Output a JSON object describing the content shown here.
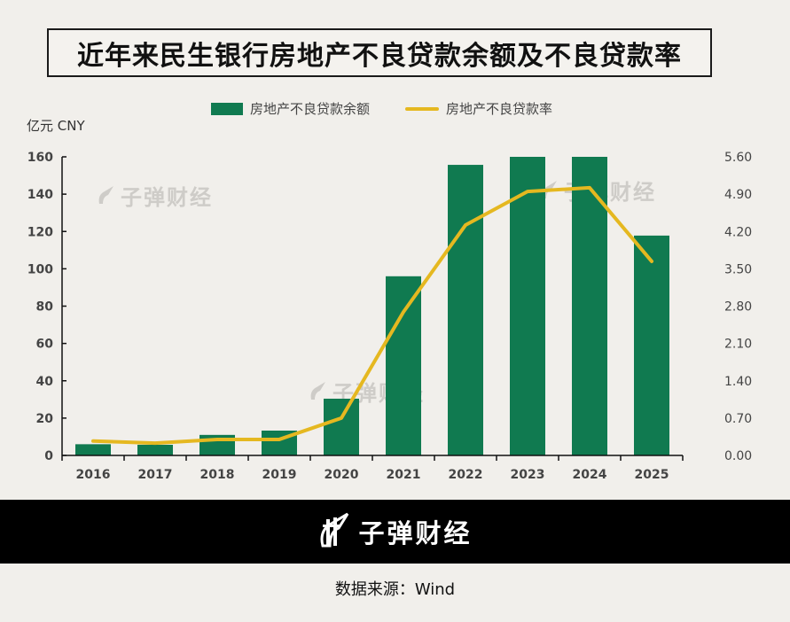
{
  "title": "近年来民生银行房地产不良贷款余额及不良贷款率",
  "legend": {
    "bar_label": "房地产不良贷款余额",
    "line_label": "房地产不良贷款率"
  },
  "left_axis_unit": "亿元 CNY",
  "watermark_text": "子弹财经",
  "brand": {
    "name": "子弹财经"
  },
  "source": "数据来源：Wind",
  "colors": {
    "bar": "#107a50",
    "line": "#e5b820",
    "background": "#f1efeb"
  },
  "chart_data": {
    "type": "bar",
    "title": "近年来民生银行房地产不良贷款余额及不良贷款率",
    "xlabel": "",
    "ylabel": "亿元 CNY",
    "categories": [
      "2016",
      "2017",
      "2018",
      "2019",
      "2020",
      "2021",
      "2022",
      "2023",
      "2024",
      "2025"
    ],
    "series": [
      {
        "name": "房地产不良贷款余额",
        "type": "bar",
        "axis": "left",
        "values": [
          6.0,
          5.7,
          11.0,
          13.3,
          30.4,
          96.0,
          155.7,
          160.0,
          160.0,
          117.8
        ]
      },
      {
        "name": "房地产不良贷款率",
        "type": "line",
        "axis": "right",
        "values": [
          0.27,
          0.23,
          0.3,
          0.3,
          0.7,
          2.69,
          4.32,
          4.95,
          5.02,
          3.64
        ]
      }
    ],
    "ylim": [
      0,
      160
    ],
    "yticks": [
      "0",
      "20",
      "40",
      "60",
      "80",
      "100",
      "120",
      "140",
      "160"
    ],
    "y2lim": [
      0,
      5.6
    ],
    "y2ticks": [
      "0.00",
      "0.70",
      "1.40",
      "2.10",
      "2.80",
      "3.50",
      "4.20",
      "4.90",
      "5.60"
    ],
    "grid": false,
    "legend_position": "top"
  }
}
